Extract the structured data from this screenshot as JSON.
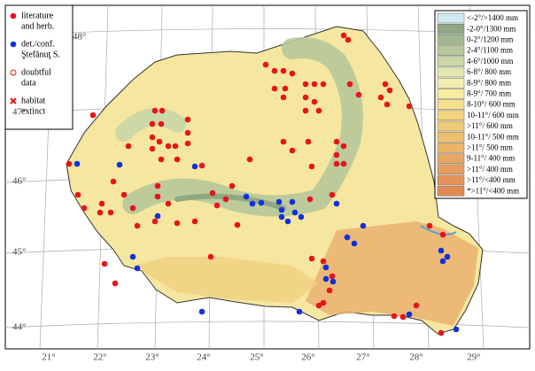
{
  "legend": {
    "items": [
      {
        "symbol": "red-dot",
        "lines": [
          "literature",
          "and herb."
        ]
      },
      {
        "symbol": "blue-dot",
        "lines": [
          "det./conf.",
          "Ştefănuţ S."
        ]
      },
      {
        "symbol": "ring",
        "lines": [
          "doubtful",
          "data"
        ]
      },
      {
        "symbol": "cross",
        "lines": [
          "habitat",
          "extinct"
        ]
      }
    ]
  },
  "climate_legend": {
    "items": [
      {
        "label": "<-2°/>1400 mm",
        "color": "#cfe9f2"
      },
      {
        "label": "-2-0°/1300 mm",
        "color": "#8fa883"
      },
      {
        "label": "0-2°/1200 mm",
        "color": "#a2b88e"
      },
      {
        "label": "2-4°/1100 mm",
        "color": "#b7c89a"
      },
      {
        "label": "4-6°/1000 mm",
        "color": "#ccd8a6"
      },
      {
        "label": "6-8°/ 800 mm",
        "color": "#e4e8b0"
      },
      {
        "label": "8-9°/ 800 mm",
        "color": "#f3efb4"
      },
      {
        "label": "8-9°/ 700 mm",
        "color": "#f8eca0"
      },
      {
        "label": "8-10°/ 600 mm",
        "color": "#f6e08c"
      },
      {
        "label": "10-11°/ 600 mm",
        "color": "#f2d47e"
      },
      {
        "label": ">11°/ 600 mm",
        "color": "#efcb78"
      },
      {
        "label": "10-11°/ 500 mm",
        "color": "#eebf6c"
      },
      {
        "label": ">11°/ 500 mm",
        "color": "#ebb468"
      },
      {
        "label": "9-11°/ 400 mm",
        "color": "#e9a864"
      },
      {
        "label": ">11°/ 400 mm",
        "color": "#e79d5e"
      },
      {
        "label": ">11°/<400 mm",
        "color": "#e59358"
      },
      {
        "label": "*>11°/<400 mm",
        "color": "#e38a52"
      }
    ]
  },
  "graticule": {
    "latitudes": [
      "48°",
      "47°",
      "46°",
      "45°",
      "44°"
    ],
    "longitudes": [
      "21°",
      "22°",
      "23°",
      "24°",
      "25°",
      "26°",
      "27°",
      "28°",
      "29°"
    ]
  }
}
